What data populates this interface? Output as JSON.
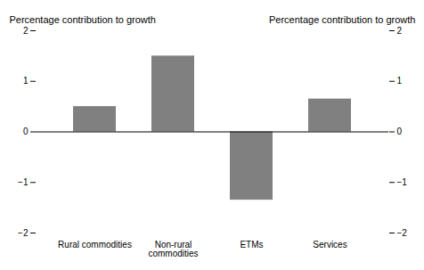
{
  "chart_data": {
    "type": "bar",
    "categories": [
      "Rural commodities",
      "Non-rural\ncommodities",
      "ETMs",
      "Services"
    ],
    "values": [
      0.5,
      1.5,
      -1.35,
      0.65
    ],
    "color": "#808080",
    "ylim": [
      -2,
      2
    ],
    "yticks": [
      -2,
      -1,
      0,
      1,
      2
    ],
    "ylabel": "Percentage contribution to growth",
    "y2lim": [
      -2,
      2
    ],
    "y2ticks": [
      -2,
      -1,
      0,
      1,
      2
    ],
    "y2label": "Percentage contribution to growth"
  }
}
